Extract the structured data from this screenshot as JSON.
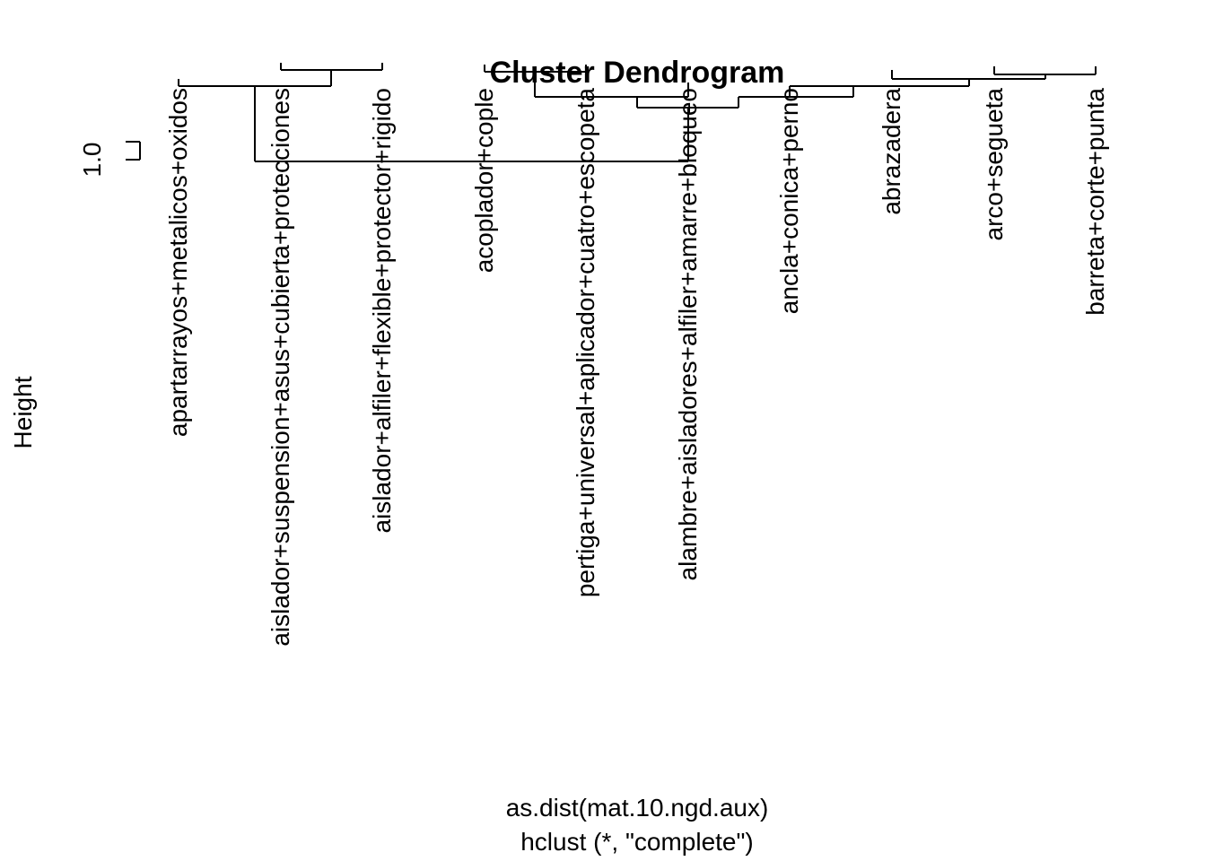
{
  "chart_data": {
    "type": "dendrogram",
    "title": "Cluster Dendrogram",
    "xlabel": "as.dist(mat.10.ngd.aux)",
    "sub": "hclust (*, \"complete\")",
    "ylabel": "Height",
    "y_ticks": [
      "1.0"
    ],
    "leaves": [
      "apartarrayos+metalicos+oxidos",
      "aislador+suspension+asus+cubierta+protecciones",
      "aislador+alfiler+flexible+protector+rigido",
      "acoplador+cople",
      "pertiga+universal+aplicador+cuatro+escopeta",
      "alambre+aisladores+alfiler+amarre+bloqueo",
      "ancla+conica+perno",
      "abrazadera",
      "arco+segueta",
      "barreta+corte+punta"
    ]
  }
}
